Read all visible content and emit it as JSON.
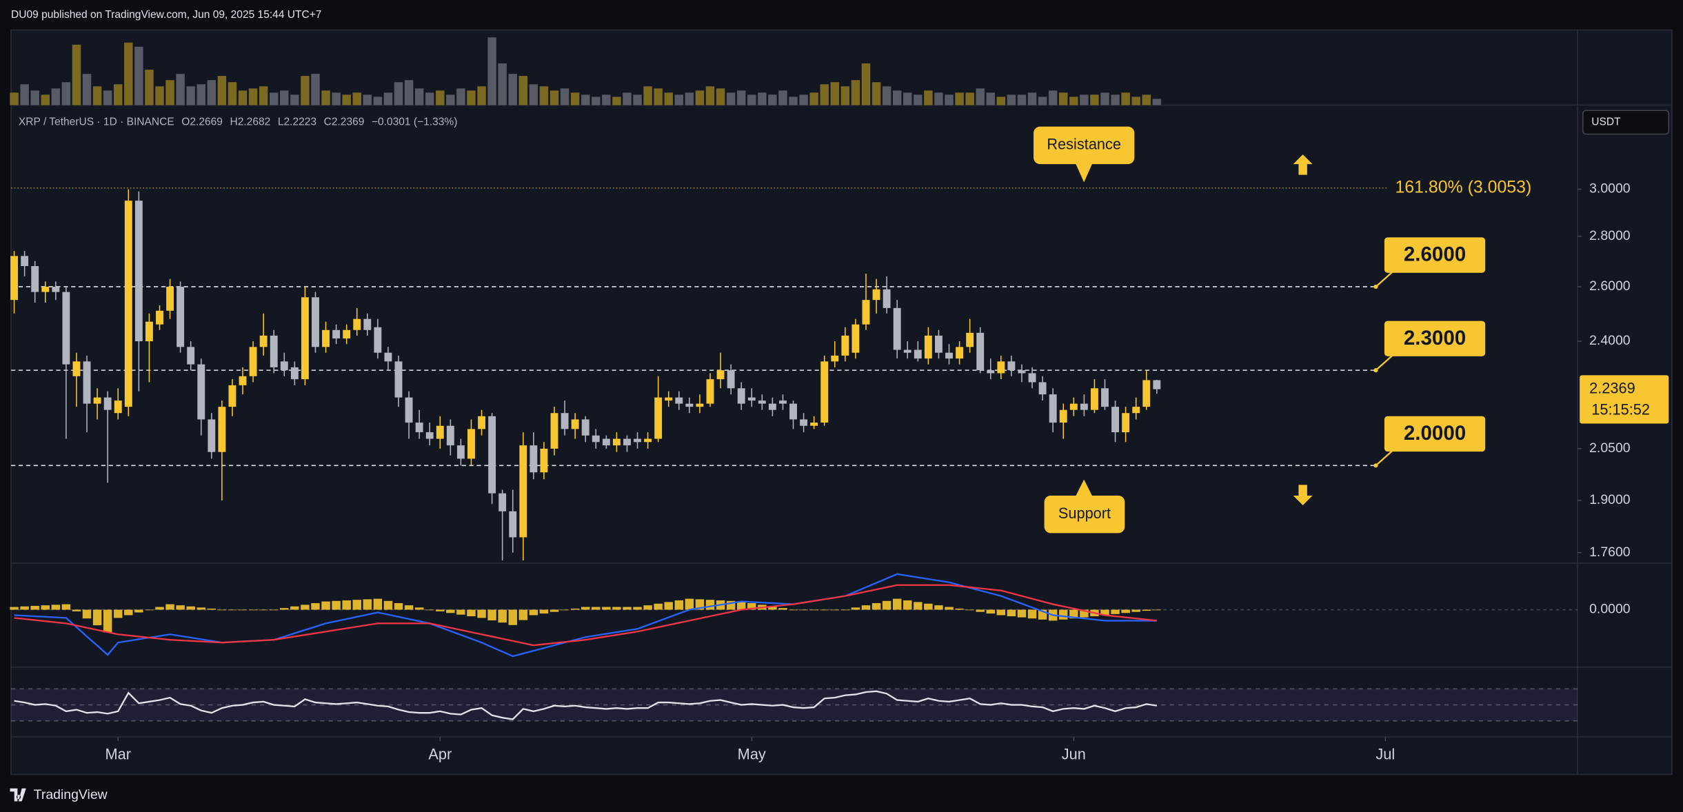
{
  "header": {
    "publisher": "DU09 published on TradingView.com, Jun 09, 2025 15:44 UTC+7",
    "brand": "TradingView"
  },
  "chart_data": [
    {
      "type": "candlestick",
      "symbol": "XRP / TetherUS · 1D · BINANCE",
      "ohlc_prefixes": [
        "O",
        "H",
        "L",
        "C"
      ],
      "change_label": "−0.0301 (−1.33%)",
      "currency": "USDT",
      "countdown": "15:15:52",
      "up_color": "#f7c630",
      "down_color": "#b2b5be",
      "log_scale": true,
      "grid": false,
      "ylim": [
        1.733,
        3.394
      ],
      "yticks": [
        {
          "value": 3,
          "label": "3.0000"
        },
        {
          "value": 2.8,
          "label": "2.8000"
        },
        {
          "value": 2.6,
          "label": "2.6000"
        },
        {
          "value": 2.4,
          "label": "2.4000"
        },
        {
          "value": 2.05,
          "label": "2.0500"
        },
        {
          "value": 1.9,
          "label": "1.9000"
        },
        {
          "value": 1.76,
          "label": "1.7600"
        }
      ],
      "xlim": [
        -0.3,
        150.5
      ],
      "xticks": [
        {
          "value": 10,
          "label": "Mar"
        },
        {
          "value": 41,
          "label": "Apr"
        },
        {
          "value": 71,
          "label": "May"
        },
        {
          "value": 102,
          "label": "Jun"
        },
        {
          "value": 132,
          "label": "Jul"
        }
      ],
      "levels": [
        {
          "value": 2.6,
          "label": "2.6000"
        },
        {
          "value": 2.3,
          "label": "2.3000"
        },
        {
          "value": 2.0,
          "label": "2.0000"
        }
      ],
      "level_color": "#f7c630",
      "fib": {
        "value": 3.0053,
        "label": "161.80% (3.0053)",
        "color": "#f7c630"
      },
      "annotations": [
        "Resistance",
        "Support"
      ],
      "open": [
        2.55,
        2.72,
        2.68,
        2.58,
        2.6,
        2.58,
        2.28,
        2.33,
        2.19,
        2.21,
        2.16,
        2.18,
        2.95,
        2.4,
        2.46,
        2.51,
        2.6,
        2.38,
        2.32,
        2.14,
        2.04,
        2.18,
        2.25,
        2.28,
        2.38,
        2.42,
        2.33,
        2.31,
        2.27,
        2.56,
        2.38,
        2.44,
        2.41,
        2.44,
        2.48,
        2.45,
        2.36,
        2.33,
        2.21,
        2.13,
        2.1,
        2.08,
        2.12,
        2.06,
        2.02,
        2.11,
        2.15,
        1.92,
        1.87,
        1.8,
        2.06,
        1.98,
        2.05,
        2.16,
        2.11,
        2.14,
        2.09,
        2.08,
        2.06,
        2.08,
        2.08,
        2.07,
        2.08,
        2.2,
        2.21,
        2.19,
        2.18,
        2.19,
        2.27,
        2.3,
        2.24,
        2.21,
        2.2,
        2.19,
        2.2,
        2.19,
        2.14,
        2.12,
        2.13,
        2.33,
        2.35,
        2.36,
        2.46,
        2.55,
        2.59,
        2.52,
        2.37,
        2.37,
        2.34,
        2.42,
        2.36,
        2.34,
        2.38,
        2.43,
        2.3,
        2.29,
        2.33,
        2.3,
        2.29,
        2.26,
        2.22,
        2.13,
        2.17,
        2.19,
        2.17,
        2.24,
        2.18,
        2.1,
        2.16,
        2.18,
        2.2669
      ],
      "high": [
        2.74,
        2.74,
        2.7,
        2.62,
        2.62,
        2.6,
        2.36,
        2.35,
        2.24,
        2.23,
        2.24,
        3.0,
        2.99,
        2.5,
        2.53,
        2.63,
        2.62,
        2.4,
        2.34,
        2.16,
        2.2,
        2.27,
        2.31,
        2.4,
        2.5,
        2.44,
        2.36,
        2.33,
        2.6,
        2.58,
        2.47,
        2.46,
        2.46,
        2.52,
        2.5,
        2.48,
        2.38,
        2.35,
        2.23,
        2.17,
        2.13,
        2.15,
        2.14,
        2.08,
        2.14,
        2.17,
        2.16,
        1.93,
        1.93,
        2.1,
        2.1,
        2.07,
        2.18,
        2.2,
        2.16,
        2.15,
        2.11,
        2.09,
        2.1,
        2.09,
        2.1,
        2.1,
        2.28,
        2.23,
        2.23,
        2.21,
        2.22,
        2.29,
        2.36,
        2.32,
        2.26,
        2.24,
        2.22,
        2.21,
        2.22,
        2.2,
        2.16,
        2.15,
        2.35,
        2.4,
        2.45,
        2.48,
        2.65,
        2.63,
        2.64,
        2.55,
        2.4,
        2.4,
        2.45,
        2.44,
        2.39,
        2.4,
        2.48,
        2.45,
        2.34,
        2.35,
        2.35,
        2.32,
        2.31,
        2.28,
        2.24,
        2.19,
        2.21,
        2.22,
        2.27,
        2.27,
        2.2,
        2.18,
        2.21,
        2.3,
        2.2682
      ],
      "low": [
        2.5,
        2.64,
        2.54,
        2.54,
        2.55,
        2.08,
        2.18,
        2.1,
        2.14,
        1.95,
        2.14,
        2.15,
        2.23,
        2.26,
        2.44,
        2.48,
        2.36,
        2.3,
        2.09,
        2.02,
        1.9,
        2.15,
        2.22,
        2.26,
        2.35,
        2.29,
        2.28,
        2.25,
        2.25,
        2.36,
        2.36,
        2.39,
        2.39,
        2.42,
        2.42,
        2.34,
        2.3,
        2.18,
        2.08,
        2.08,
        2.06,
        2.05,
        2.03,
        2.0,
        2.0,
        2.09,
        1.89,
        1.74,
        1.76,
        1.74,
        1.96,
        1.96,
        2.03,
        2.09,
        2.08,
        2.07,
        2.05,
        2.05,
        2.04,
        2.04,
        2.05,
        2.05,
        2.07,
        2.18,
        2.17,
        2.16,
        2.16,
        2.18,
        2.24,
        2.22,
        2.17,
        2.18,
        2.17,
        2.15,
        2.17,
        2.11,
        2.1,
        2.11,
        2.12,
        2.31,
        2.33,
        2.34,
        2.44,
        2.5,
        2.5,
        2.34,
        2.34,
        2.33,
        2.32,
        2.34,
        2.32,
        2.32,
        2.36,
        2.29,
        2.27,
        2.27,
        2.28,
        2.26,
        2.24,
        2.2,
        2.1,
        2.08,
        2.15,
        2.15,
        2.16,
        2.17,
        2.07,
        2.07,
        2.14,
        2.17,
        2.2223
      ],
      "close": [
        2.72,
        2.68,
        2.58,
        2.6,
        2.58,
        2.32,
        2.33,
        2.19,
        2.21,
        2.17,
        2.2,
        2.95,
        2.4,
        2.47,
        2.51,
        2.6,
        2.38,
        2.32,
        2.14,
        2.04,
        2.18,
        2.25,
        2.28,
        2.38,
        2.42,
        2.31,
        2.3,
        2.27,
        2.56,
        2.38,
        2.44,
        2.41,
        2.44,
        2.48,
        2.44,
        2.36,
        2.33,
        2.21,
        2.13,
        2.1,
        2.08,
        2.12,
        2.06,
        2.02,
        2.11,
        2.15,
        1.92,
        1.87,
        1.8,
        2.06,
        1.98,
        2.05,
        2.16,
        2.11,
        2.14,
        2.09,
        2.07,
        2.06,
        2.08,
        2.06,
        2.07,
        2.08,
        2.21,
        2.21,
        2.19,
        2.18,
        2.19,
        2.27,
        2.3,
        2.24,
        2.19,
        2.2,
        2.19,
        2.17,
        2.19,
        2.14,
        2.12,
        2.13,
        2.33,
        2.35,
        2.42,
        2.46,
        2.55,
        2.59,
        2.52,
        2.37,
        2.36,
        2.34,
        2.42,
        2.36,
        2.34,
        2.38,
        2.43,
        2.3,
        2.29,
        2.33,
        2.3,
        2.29,
        2.26,
        2.22,
        2.13,
        2.17,
        2.19,
        2.17,
        2.24,
        2.18,
        2.1,
        2.16,
        2.18,
        2.2669,
        2.2369
      ]
    },
    {
      "type": "bar",
      "up_color": "#7d6a22",
      "down_color": "#585b66",
      "ylim": [
        0,
        70
      ],
      "values": [
        12,
        20,
        14,
        10,
        16,
        22,
        58,
        30,
        18,
        14,
        20,
        60,
        56,
        34,
        18,
        24,
        30,
        18,
        20,
        24,
        28,
        22,
        14,
        16,
        18,
        12,
        14,
        10,
        28,
        30,
        14,
        12,
        10,
        12,
        10,
        8,
        12,
        22,
        24,
        16,
        12,
        14,
        10,
        16,
        14,
        18,
        65,
        40,
        30,
        28,
        20,
        18,
        14,
        16,
        12,
        10,
        8,
        10,
        8,
        12,
        10,
        18,
        16,
        12,
        10,
        12,
        14,
        18,
        16,
        12,
        14,
        10,
        12,
        10,
        14,
        8,
        10,
        12,
        20,
        22,
        18,
        24,
        40,
        22,
        18,
        14,
        12,
        10,
        14,
        12,
        10,
        12,
        12,
        16,
        12,
        8,
        10,
        10,
        12,
        8,
        14,
        12,
        8,
        10,
        10,
        12,
        10,
        12,
        8,
        10,
        6
      ]
    },
    {
      "type": "line",
      "ylim": [
        -0.21,
        0.17
      ],
      "yticks": [
        {
          "value": 0,
          "label": "0.0000"
        }
      ],
      "series": [
        {
          "style": "histogram",
          "color": "#f7c630",
          "values": [
            0.01,
            0.012,
            0.014,
            0.016,
            0.018,
            0.02,
            -0.006,
            -0.032,
            -0.057,
            -0.083,
            -0.03,
            -0.02,
            -0.01,
            0.0,
            0.01,
            0.02,
            0.016,
            0.012,
            0.008,
            0.004,
            0.0,
            0.0,
            0.0,
            0.0,
            0.0,
            0.0,
            0.006,
            0.012,
            0.018,
            0.024,
            0.03,
            0.032,
            0.034,
            0.036,
            0.038,
            0.04,
            0.032,
            0.024,
            0.016,
            0.008,
            0.0,
            -0.006,
            -0.012,
            -0.018,
            -0.024,
            -0.03,
            -0.039,
            -0.047,
            -0.056,
            -0.038,
            -0.02,
            -0.014,
            -0.008,
            -0.002,
            0.004,
            0.01,
            0.01,
            0.01,
            0.01,
            0.01,
            0.01,
            0.016,
            0.022,
            0.028,
            0.034,
            0.04,
            0.038,
            0.036,
            0.034,
            0.032,
            0.03,
            0.024,
            0.018,
            0.012,
            0.006,
            0.0,
            0.0,
            0.0,
            0.0,
            0.0,
            0.0,
            0.008,
            0.016,
            0.024,
            0.032,
            0.04,
            0.034,
            0.028,
            0.022,
            0.016,
            0.01,
            0.004,
            -0.002,
            -0.008,
            -0.014,
            -0.02,
            -0.024,
            -0.028,
            -0.032,
            -0.036,
            -0.04,
            -0.036,
            -0.032,
            -0.028,
            -0.024,
            -0.02,
            -0.016,
            -0.012,
            -0.008,
            -0.004,
            0.0
          ]
        },
        {
          "style": "line",
          "color": "#2962ff",
          "values": [
            -0.02,
            -0.022,
            -0.024,
            -0.026,
            -0.028,
            -0.03,
            -0.064,
            -0.098,
            -0.131,
            -0.165,
            -0.12,
            -0.114,
            -0.108,
            -0.102,
            -0.096,
            -0.09,
            -0.096,
            -0.102,
            -0.108,
            -0.114,
            -0.12,
            -0.118,
            -0.116,
            -0.114,
            -0.112,
            -0.11,
            -0.098,
            -0.086,
            -0.074,
            -0.062,
            -0.05,
            -0.042,
            -0.034,
            -0.026,
            -0.018,
            -0.01,
            -0.018,
            -0.026,
            -0.034,
            -0.042,
            -0.05,
            -0.064,
            -0.078,
            -0.092,
            -0.106,
            -0.12,
            -0.137,
            -0.153,
            -0.17,
            -0.16,
            -0.15,
            -0.14,
            -0.13,
            -0.12,
            -0.11,
            -0.1,
            -0.094,
            -0.088,
            -0.082,
            -0.076,
            -0.07,
            -0.056,
            -0.042,
            -0.028,
            -0.014,
            0.0,
            0.006,
            0.012,
            0.018,
            0.024,
            0.03,
            0.028,
            0.026,
            0.024,
            0.022,
            0.02,
            0.026,
            0.032,
            0.038,
            0.044,
            0.05,
            0.066,
            0.082,
            0.098,
            0.114,
            0.13,
            0.124,
            0.118,
            0.112,
            0.106,
            0.1,
            0.09,
            0.08,
            0.07,
            0.06,
            0.05,
            0.036,
            0.022,
            0.008,
            -0.006,
            -0.02,
            -0.024,
            -0.028,
            -0.032,
            -0.036,
            -0.04,
            -0.04,
            -0.04,
            -0.04,
            -0.04,
            -0.04
          ]
        },
        {
          "style": "line",
          "color": "#f23645",
          "values": [
            -0.03,
            -0.034,
            -0.038,
            -0.042,
            -0.046,
            -0.05,
            -0.058,
            -0.066,
            -0.074,
            -0.082,
            -0.09,
            -0.094,
            -0.098,
            -0.102,
            -0.106,
            -0.11,
            -0.112,
            -0.114,
            -0.116,
            -0.118,
            -0.12,
            -0.118,
            -0.116,
            -0.114,
            -0.112,
            -0.11,
            -0.104,
            -0.098,
            -0.092,
            -0.086,
            -0.08,
            -0.074,
            -0.068,
            -0.062,
            -0.056,
            -0.05,
            -0.05,
            -0.05,
            -0.05,
            -0.05,
            -0.05,
            -0.058,
            -0.066,
            -0.074,
            -0.082,
            -0.09,
            -0.098,
            -0.106,
            -0.114,
            -0.122,
            -0.13,
            -0.126,
            -0.122,
            -0.118,
            -0.114,
            -0.11,
            -0.104,
            -0.098,
            -0.092,
            -0.086,
            -0.08,
            -0.072,
            -0.064,
            -0.056,
            -0.048,
            -0.04,
            -0.032,
            -0.024,
            -0.016,
            -0.008,
            0.0,
            0.004,
            0.008,
            0.012,
            0.016,
            0.02,
            0.026,
            0.032,
            0.038,
            0.044,
            0.05,
            0.058,
            0.066,
            0.074,
            0.082,
            0.09,
            0.09,
            0.09,
            0.09,
            0.09,
            0.09,
            0.086,
            0.082,
            0.078,
            0.074,
            0.07,
            0.06,
            0.05,
            0.04,
            0.03,
            0.02,
            0.012,
            0.004,
            -0.004,
            -0.012,
            -0.02,
            -0.024,
            -0.028,
            -0.032,
            -0.036,
            -0.04
          ]
        }
      ]
    },
    {
      "type": "line",
      "ylim": [
        10,
        93
      ],
      "levels": [
        70,
        50,
        30
      ],
      "band_color": "#7e57c2",
      "series": [
        {
          "style": "line",
          "color": "#e0e3eb",
          "values": [
            55,
            53,
            50,
            51,
            49,
            42,
            44,
            40,
            41,
            39,
            42,
            65,
            52,
            54,
            56,
            59,
            51,
            49,
            43,
            40,
            46,
            49,
            50,
            53,
            54,
            50,
            49,
            48,
            57,
            53,
            52,
            51,
            52,
            53,
            51,
            49,
            48,
            44,
            41,
            40,
            40,
            42,
            39,
            38,
            44,
            46,
            37,
            34,
            32,
            45,
            42,
            45,
            49,
            48,
            49,
            47,
            46,
            45,
            46,
            45,
            46,
            46,
            53,
            53,
            52,
            51,
            52,
            55,
            56,
            53,
            50,
            51,
            50,
            49,
            50,
            47,
            46,
            47,
            58,
            59,
            62,
            63,
            66,
            67,
            64,
            56,
            55,
            54,
            58,
            55,
            54,
            56,
            58,
            51,
            50,
            52,
            50,
            50,
            48,
            47,
            42,
            45,
            46,
            45,
            49,
            46,
            42,
            46,
            47,
            51,
            49
          ]
        }
      ]
    }
  ]
}
